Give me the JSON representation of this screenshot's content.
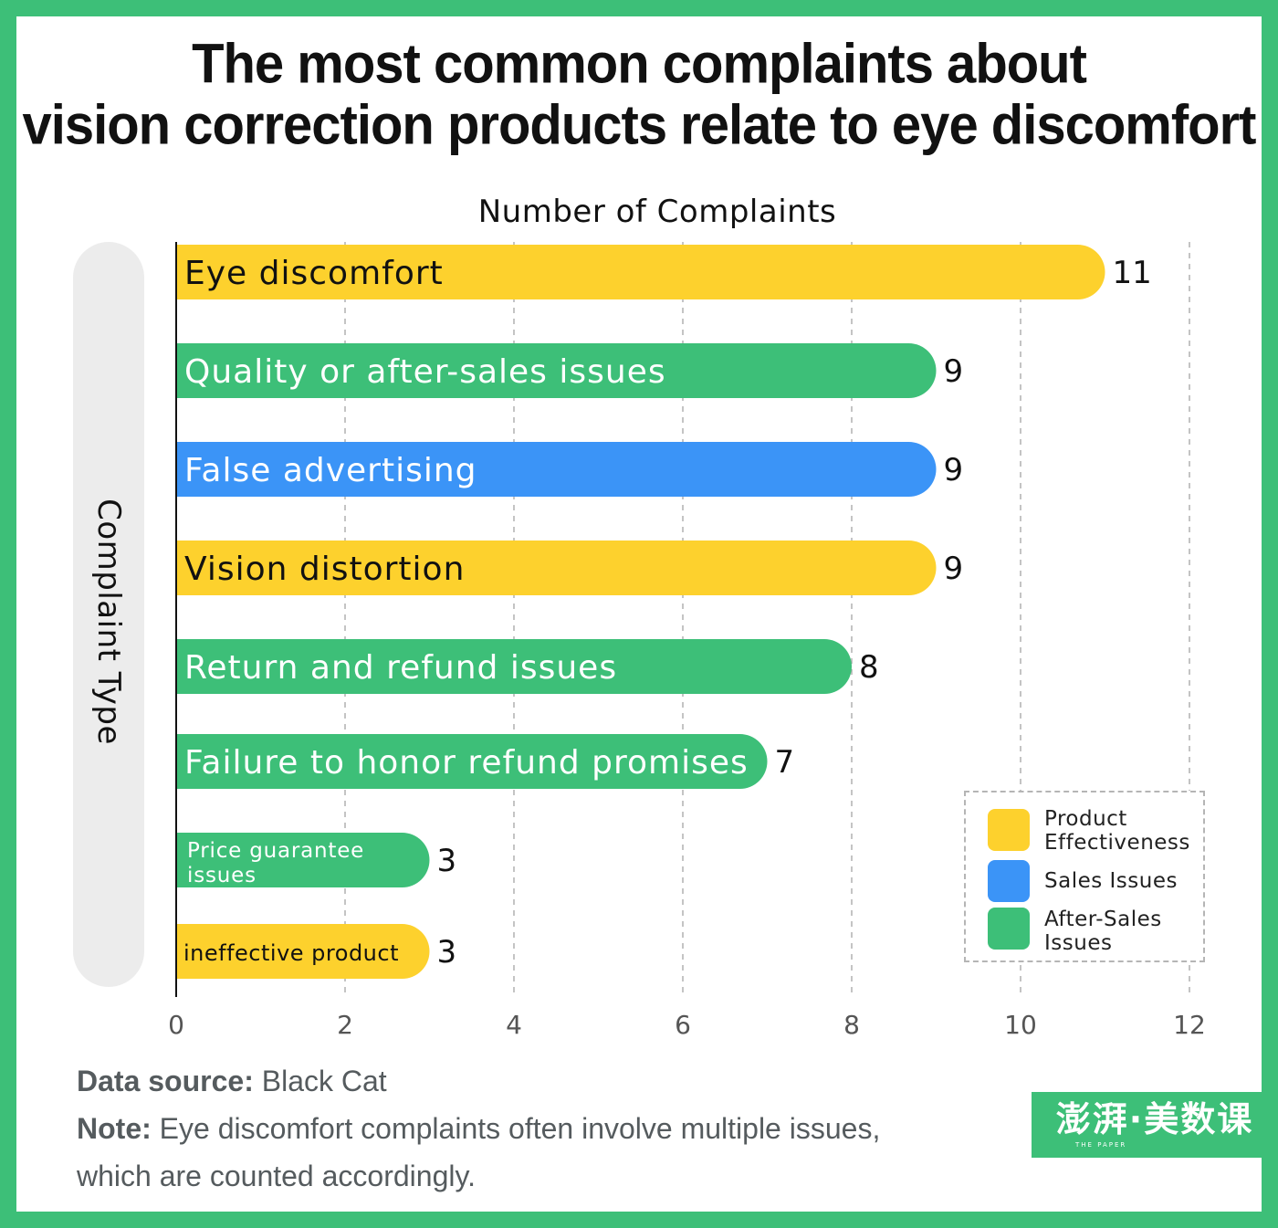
{
  "title_lines": [
    "The most common complaints about",
    "vision correction products relate to eye discomfort"
  ],
  "colors": {
    "product_effectiveness": "#fdd12d",
    "sales_issues": "#3b94f7",
    "after_sales_issues": "#3dbf78",
    "frame": "#3dbf78"
  },
  "legend": {
    "items": [
      {
        "label": "Product Effectiveness",
        "color": "#fdd12d"
      },
      {
        "label": "Sales Issues",
        "color": "#3b94f7"
      },
      {
        "label": "After-Sales Issues",
        "color": "#3dbf78"
      }
    ]
  },
  "footer": {
    "source_label": "Data source:",
    "source_value": "Black Cat",
    "note_label": "Note:",
    "note_value": "Eye discomfort complaints often involve multiple issues, which are counted accordingly."
  },
  "logo": {
    "text": "澎湃·美数课",
    "subtext": "THE PAPER"
  },
  "chart_data": {
    "type": "bar",
    "orientation": "horizontal",
    "xlabel": "Number of Complaints",
    "ylabel": "Complaint Type",
    "xlim": [
      0,
      12
    ],
    "xticks": [
      0,
      2,
      4,
      6,
      8,
      10,
      12
    ],
    "grid": "vertical dashed",
    "legend_position": "bottom-right",
    "categories": [
      "Eye discomfort",
      "Quality or after-sales issues",
      "False advertising",
      "Vision distortion",
      "Return and refund issues",
      "Failure to honor refund promises",
      "Price guarantee issues",
      "ineffective product"
    ],
    "values": [
      11,
      9,
      9,
      9,
      8,
      7,
      3,
      3
    ],
    "groups": [
      "Product Effectiveness",
      "After-Sales Issues",
      "Sales Issues",
      "Product Effectiveness",
      "After-Sales Issues",
      "After-Sales Issues",
      "After-Sales Issues",
      "Product Effectiveness"
    ]
  }
}
